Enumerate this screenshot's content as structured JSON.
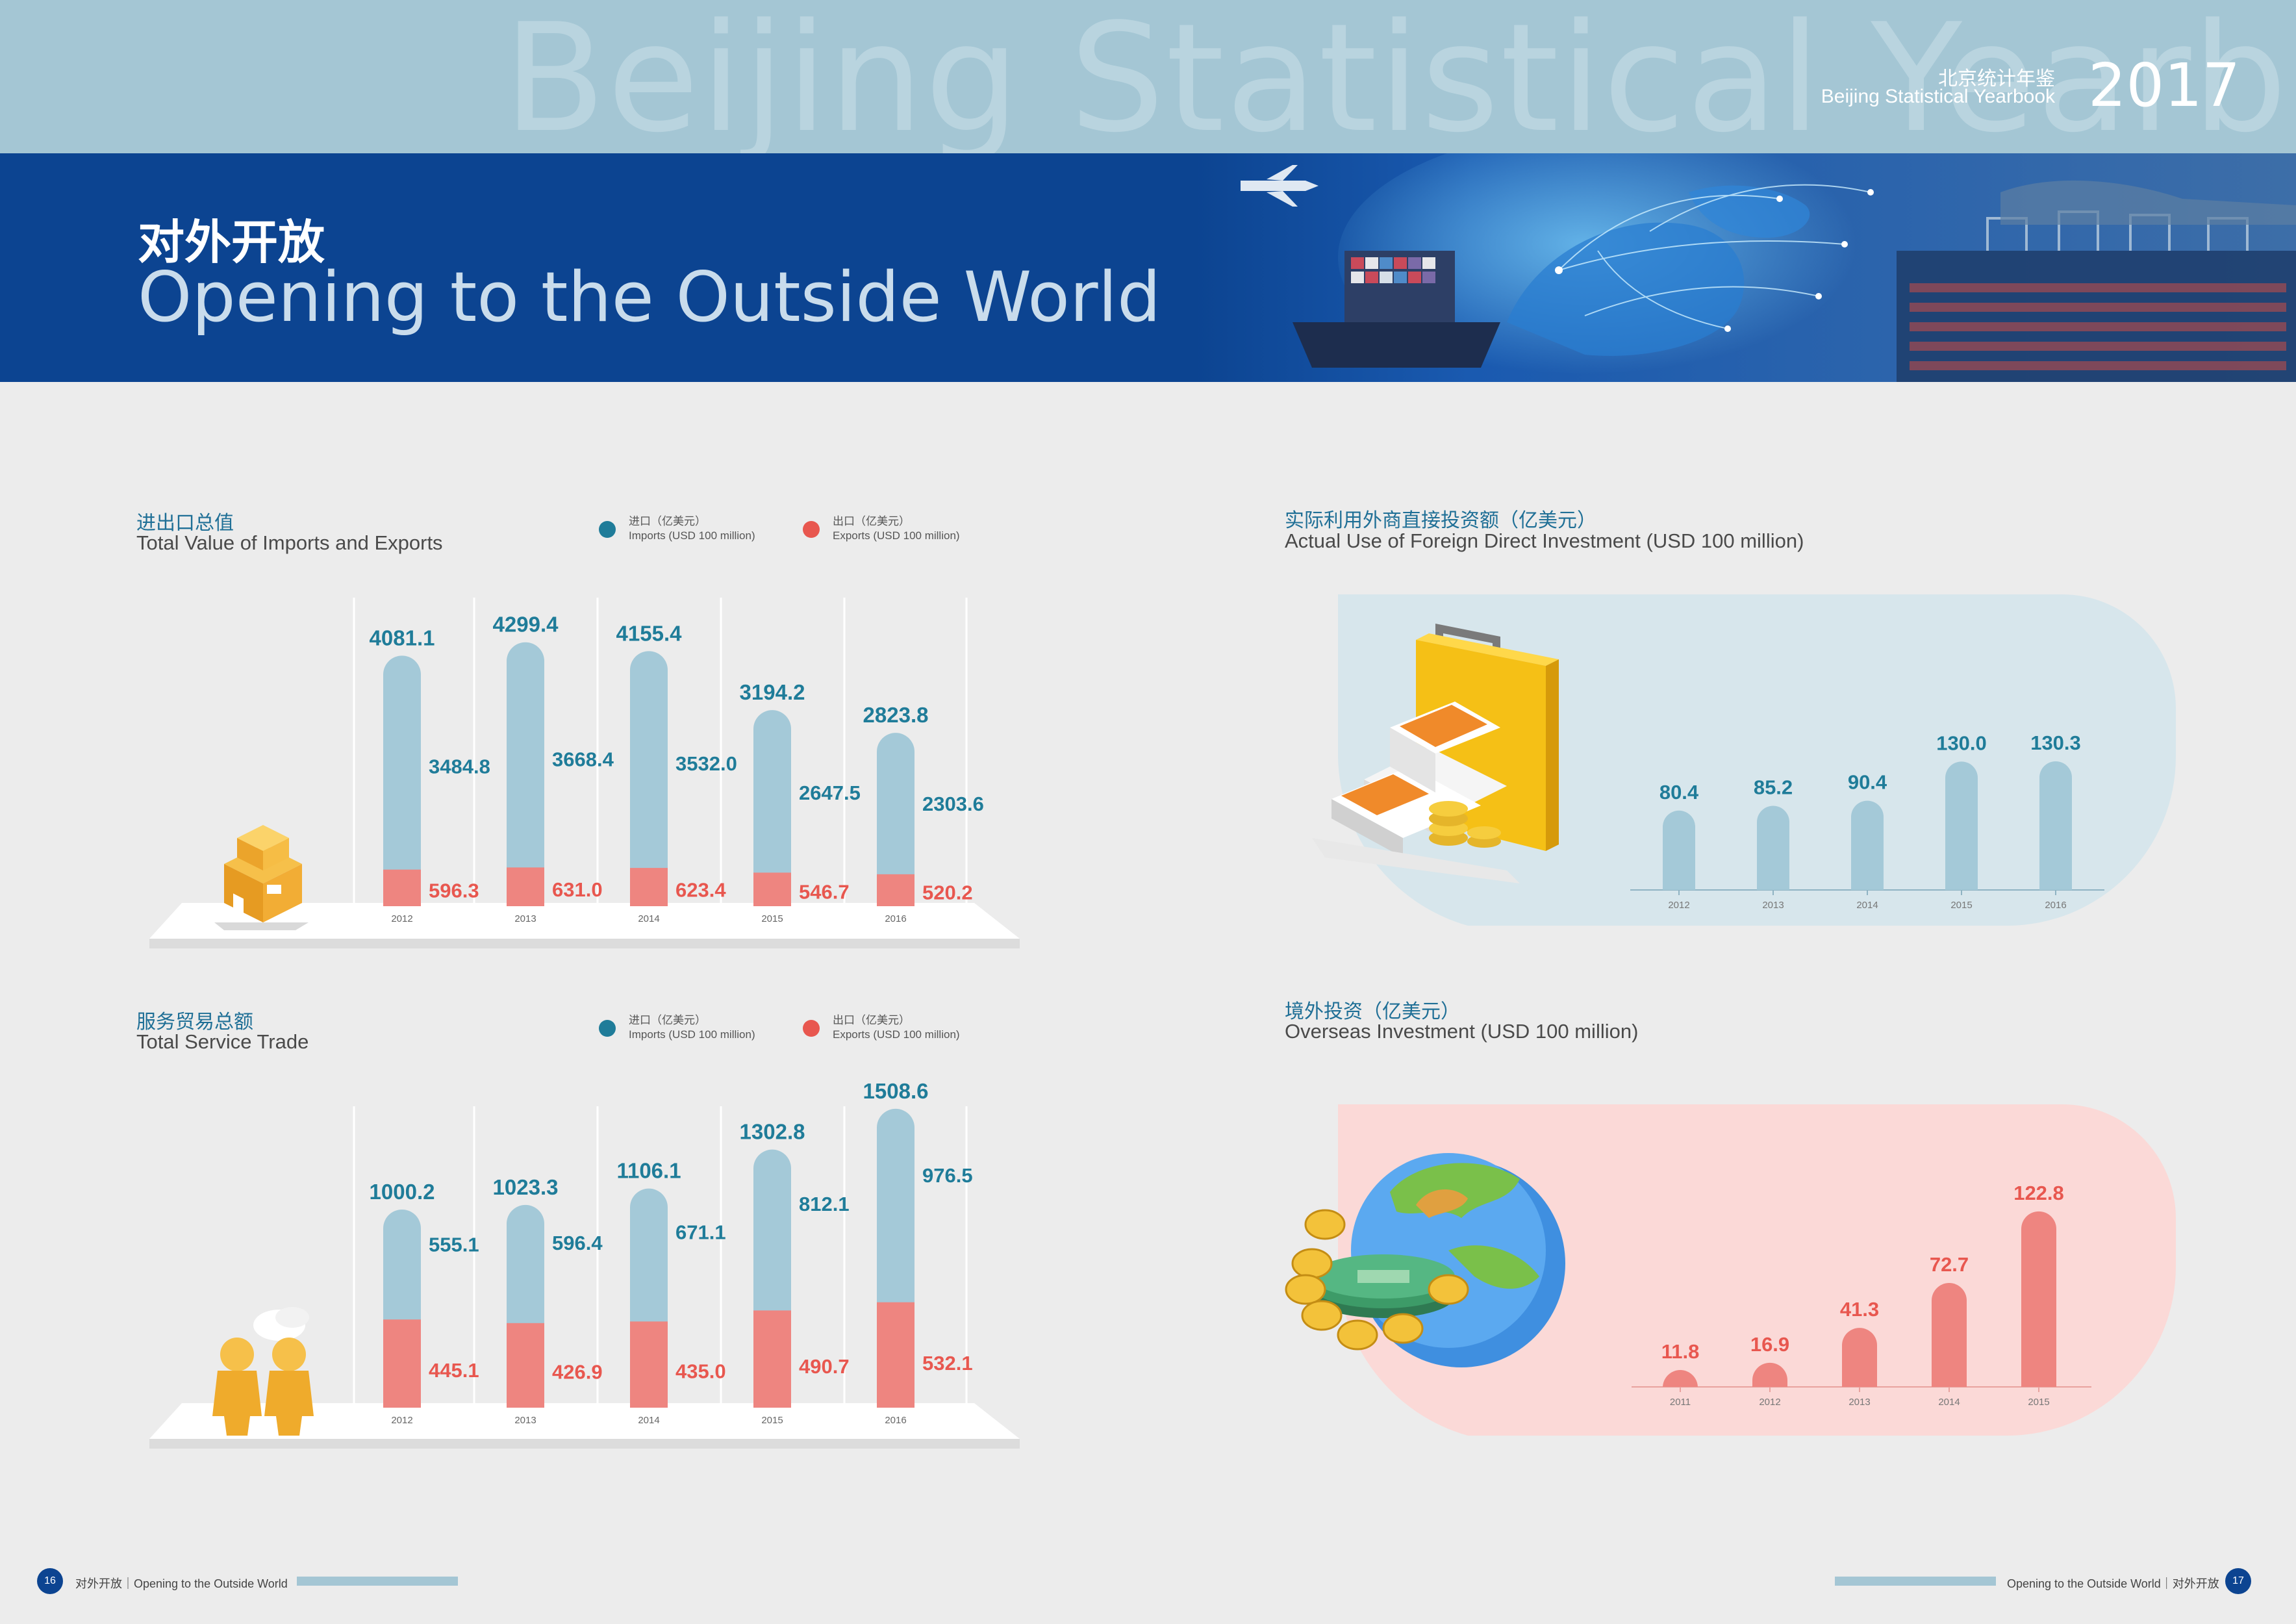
{
  "header": {
    "watermark": "Beijing Statistical Yearbook",
    "yearbook_cn": "北京统计年鉴",
    "yearbook_en": "Beijing Statistical Yearbook",
    "year": "2017"
  },
  "title": {
    "cn": "对外开放",
    "en": "Opening to the Outside World"
  },
  "sections": {
    "trade": {
      "title_cn": "进出口总值",
      "title_en": "Total Value of Imports and Exports",
      "legend_imports_cn": "进口（亿美元）",
      "legend_imports_en": "Imports (USD 100 million)",
      "legend_exports_cn": "出口（亿美元）",
      "legend_exports_en": "Exports (USD 100 million)"
    },
    "service": {
      "title_cn": "服务贸易总额",
      "title_en": "Total Service Trade",
      "legend_imports_cn": "进口（亿美元）",
      "legend_imports_en": "Imports (USD 100 million)",
      "legend_exports_cn": "出口（亿美元）",
      "legend_exports_en": "Exports (USD 100 million)"
    },
    "fdi": {
      "title_cn": "实际利用外商直接投资额（亿美元）",
      "title_en": "Actual Use of Foreign Direct Investment (USD 100 million)"
    },
    "overseas": {
      "title_cn": "境外投资（亿美元）",
      "title_en": "Overseas Investment (USD 100 million)"
    }
  },
  "colors": {
    "imports": "#a4c9d8",
    "exports": "#ee8580",
    "import_label": "#1f7c99",
    "export_label": "#e8574f",
    "fdi_panel": "#d7e6ec",
    "overseas_panel": "#fbd9d7"
  },
  "chart_data": [
    {
      "id": "trade",
      "type": "bar",
      "stacked": true,
      "categories": [
        "2012",
        "2013",
        "2014",
        "2015",
        "2016"
      ],
      "totals": [
        "4081.1",
        "4299.4",
        "4155.4",
        "3194.2",
        "2823.8"
      ],
      "series": [
        {
          "name": "Imports (USD 100 million)",
          "values": [
            3484.8,
            3668.4,
            3532.0,
            2647.5,
            2303.6
          ],
          "labels": [
            "3484.8",
            "3668.4",
            "3532.0",
            "2647.5",
            "2303.6"
          ]
        },
        {
          "name": "Exports (USD 100 million)",
          "values": [
            596.3,
            631.0,
            623.4,
            546.7,
            520.2
          ],
          "labels": [
            "596.3",
            "631.0",
            "623.4",
            "546.7",
            "520.2"
          ]
        }
      ]
    },
    {
      "id": "service",
      "type": "bar",
      "stacked": true,
      "categories": [
        "2012",
        "2013",
        "2014",
        "2015",
        "2016"
      ],
      "totals": [
        "1000.2",
        "1023.3",
        "1106.1",
        "1302.8",
        "1508.6"
      ],
      "series": [
        {
          "name": "Imports (USD 100 million)",
          "values": [
            555.1,
            596.4,
            671.1,
            812.1,
            976.5
          ],
          "labels": [
            "555.1",
            "596.4",
            "671.1",
            "812.1",
            "976.5"
          ]
        },
        {
          "name": "Exports (USD 100 million)",
          "values": [
            445.1,
            426.9,
            435.0,
            490.7,
            532.1
          ],
          "labels": [
            "445.1",
            "426.9",
            "435.0",
            "490.7",
            "532.1"
          ]
        }
      ]
    },
    {
      "id": "fdi",
      "type": "bar",
      "categories": [
        "2012",
        "2013",
        "2014",
        "2015",
        "2016"
      ],
      "values": [
        80.4,
        85.2,
        90.4,
        130.0,
        130.3
      ],
      "labels": [
        "80.4",
        "85.2",
        "90.4",
        "130.0",
        "130.3"
      ]
    },
    {
      "id": "overseas",
      "type": "bar",
      "categories": [
        "2011",
        "2012",
        "2013",
        "2014",
        "2015"
      ],
      "values": [
        11.8,
        16.9,
        41.3,
        72.7,
        122.8
      ],
      "labels": [
        "11.8",
        "16.9",
        "41.3",
        "72.7",
        "122.8"
      ]
    }
  ],
  "footer": {
    "left_page": "16",
    "left_text": "对外开放｜Opening to the Outside World",
    "right_text": "Opening to the Outside World｜对外开放",
    "right_page": "17"
  }
}
